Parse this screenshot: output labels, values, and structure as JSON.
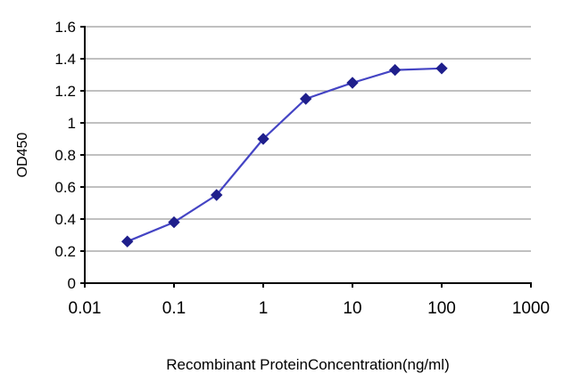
{
  "chart_data": {
    "type": "line",
    "title": "",
    "xlabel": "Recombinant ProteinConcentration(ng/ml)",
    "ylabel": "OD450",
    "x_scale": "log",
    "xlim": [
      0.01,
      1000
    ],
    "ylim": [
      0,
      1.6
    ],
    "x_ticks": [
      0.01,
      0.1,
      1,
      10,
      100,
      1000
    ],
    "x_tick_labels": [
      "0.01",
      "0.1",
      "1",
      "10",
      "100",
      "1000"
    ],
    "y_ticks": [
      0,
      0.2,
      0.4,
      0.6,
      0.8,
      1.0,
      1.2,
      1.4,
      1.6
    ],
    "y_tick_labels": [
      "0",
      "0.2",
      "0.4",
      "0.6",
      "0.8",
      "1",
      "1.2",
      "1.4",
      "1.6"
    ],
    "grid": "horizontal",
    "legend": "none",
    "series": [
      {
        "name": "OD450",
        "x": [
          0.03,
          0.1,
          0.3,
          1,
          3,
          10,
          30,
          100
        ],
        "y": [
          0.26,
          0.38,
          0.55,
          0.9,
          1.15,
          1.25,
          1.33,
          1.34
        ],
        "marker": "diamond"
      }
    ]
  },
  "colors": {
    "line": "#4444c4",
    "marker": "#1f1f8c",
    "grid": "#9a9a9a",
    "axis": "#000000",
    "text": "#000000",
    "background": "#ffffff"
  }
}
